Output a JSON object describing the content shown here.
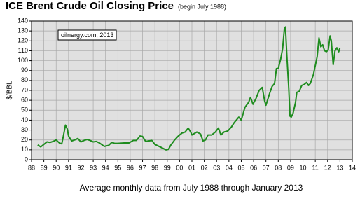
{
  "chart_data": {
    "type": "line",
    "title": "ICE Brent Crude Oil Closing Price",
    "subtitle": "(begin July 1988)",
    "y_label": "$/BBL",
    "x_label": "Average  monthly data from July 1988 through January 2013",
    "annotation": "oilnergy.com, 2013",
    "grid": true,
    "xlim": [
      1988,
      2014
    ],
    "ylim": [
      0,
      140
    ],
    "yticks": [
      0,
      10,
      20,
      30,
      40,
      50,
      60,
      70,
      80,
      90,
      100,
      110,
      120,
      130,
      140
    ],
    "xticks": [
      {
        "value": 1988,
        "label": "88"
      },
      {
        "value": 1989,
        "label": "89"
      },
      {
        "value": 1990,
        "label": "90"
      },
      {
        "value": 1991,
        "label": "91"
      },
      {
        "value": 1992,
        "label": "92"
      },
      {
        "value": 1993,
        "label": "93"
      },
      {
        "value": 1994,
        "label": "94"
      },
      {
        "value": 1995,
        "label": "95"
      },
      {
        "value": 1996,
        "label": "96"
      },
      {
        "value": 1997,
        "label": "97"
      },
      {
        "value": 1998,
        "label": "98"
      },
      {
        "value": 1999,
        "label": "99"
      },
      {
        "value": 2000,
        "label": "00"
      },
      {
        "value": 2001,
        "label": "01"
      },
      {
        "value": 2002,
        "label": "02"
      },
      {
        "value": 2003,
        "label": "03"
      },
      {
        "value": 2004,
        "label": "04"
      },
      {
        "value": 2005,
        "label": "05"
      },
      {
        "value": 2006,
        "label": "06"
      },
      {
        "value": 2007,
        "label": "07"
      },
      {
        "value": 2008,
        "label": "08"
      },
      {
        "value": 2009,
        "label": "09"
      },
      {
        "value": 2010,
        "label": "10"
      },
      {
        "value": 2011,
        "label": "11"
      },
      {
        "value": 2012,
        "label": "12"
      },
      {
        "value": 2013,
        "label": "13"
      },
      {
        "value": 2014,
        "label": "14"
      }
    ],
    "color": "#1e8c1e",
    "x": [
      1988.5,
      1988.75,
      1989.0,
      1989.25,
      1989.5,
      1989.75,
      1990.0,
      1990.25,
      1990.45,
      1990.6,
      1990.75,
      1990.9,
      1991.0,
      1991.25,
      1991.5,
      1991.75,
      1992.0,
      1992.25,
      1992.5,
      1992.75,
      1993.0,
      1993.25,
      1993.5,
      1993.9,
      1994.25,
      1994.5,
      1994.75,
      1995.0,
      1995.5,
      1995.9,
      1996.25,
      1996.5,
      1996.8,
      1997.0,
      1997.25,
      1997.5,
      1997.75,
      1998.0,
      1998.5,
      1998.9,
      1999.1,
      1999.3,
      1999.6,
      1999.9,
      2000.2,
      2000.45,
      2000.7,
      2000.9,
      2001.0,
      2001.4,
      2001.7,
      2001.9,
      2002.1,
      2002.3,
      2002.6,
      2002.9,
      2003.15,
      2003.35,
      2003.6,
      2003.9,
      2004.2,
      2004.4,
      2004.8,
      2005.0,
      2005.3,
      2005.6,
      2005.75,
      2005.95,
      2006.2,
      2006.45,
      2006.7,
      2006.9,
      2007.0,
      2007.3,
      2007.5,
      2007.7,
      2007.85,
      2008.0,
      2008.2,
      2008.35,
      2008.5,
      2008.58,
      2008.7,
      2008.85,
      2008.95,
      2009.05,
      2009.2,
      2009.4,
      2009.5,
      2009.7,
      2009.9,
      2010.1,
      2010.3,
      2010.45,
      2010.6,
      2010.85,
      2010.95,
      2011.15,
      2011.3,
      2011.45,
      2011.6,
      2011.75,
      2011.9,
      2012.05,
      2012.2,
      2012.3,
      2012.45,
      2012.6,
      2012.75,
      2012.9,
      2013.0
    ],
    "values": [
      15,
      13,
      15.5,
      18,
      17.5,
      18.5,
      20,
      17,
      16,
      25,
      35,
      31,
      24,
      19,
      20,
      21.5,
      18,
      19.5,
      20.5,
      19.5,
      18,
      18.5,
      17,
      13.5,
      14.5,
      17.5,
      16.5,
      16.5,
      17,
      17,
      19.5,
      19.5,
      24,
      23.5,
      18.5,
      19,
      19.5,
      15.5,
      12.5,
      10,
      10.5,
      15,
      20,
      24,
      27,
      28,
      32,
      28,
      25,
      28,
      26,
      19,
      20,
      25,
      25,
      28,
      32,
      25,
      28,
      29,
      33,
      37,
      43,
      40,
      53,
      58,
      63,
      56,
      62,
      70,
      73,
      59,
      55,
      67,
      74,
      77,
      92,
      92,
      102,
      112,
      133,
      134,
      104,
      72,
      44,
      43,
      47,
      58,
      68,
      69,
      75,
      76,
      78,
      75,
      77,
      86,
      92,
      104,
      123,
      114,
      116,
      110,
      109,
      111,
      125,
      120,
      96,
      110,
      113,
      109,
      113
    ]
  }
}
